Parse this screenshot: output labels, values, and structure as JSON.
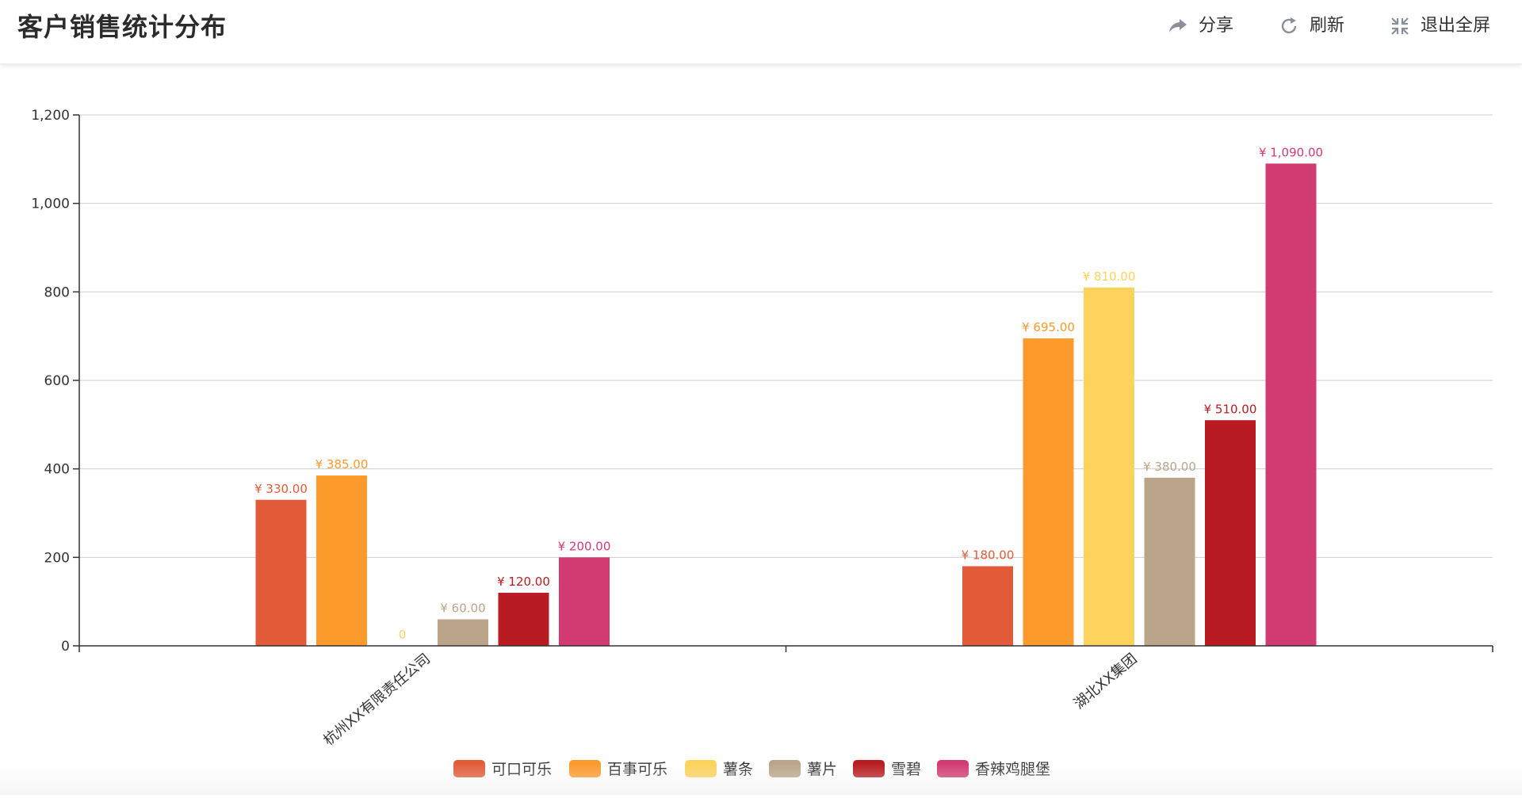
{
  "header": {
    "title": "客户销售统计分布",
    "share_label": "分享",
    "refresh_label": "刷新",
    "exit_fullscreen_label": "退出全屏",
    "share_icon": "share-arrow-icon",
    "refresh_icon": "refresh-icon",
    "exit_fullscreen_icon": "exit-fullscreen-icon"
  },
  "chart_data": {
    "type": "bar",
    "categories": [
      "杭州XX有限责任公司",
      "湖北XX集团"
    ],
    "series": [
      {
        "name": "可口可乐",
        "color": "#e25b38",
        "values": [
          330,
          180
        ],
        "labels": [
          "¥ 330.00",
          "¥ 180.00"
        ]
      },
      {
        "name": "百事可乐",
        "color": "#fd9a2c",
        "values": [
          385,
          695
        ],
        "labels": [
          "¥ 385.00",
          "¥ 695.00"
        ]
      },
      {
        "name": "薯条",
        "color": "#fdd35d",
        "values": [
          0,
          810
        ],
        "labels": [
          "0",
          "¥ 810.00"
        ]
      },
      {
        "name": "薯片",
        "color": "#bba58a",
        "values": [
          60,
          380
        ],
        "labels": [
          "¥ 60.00",
          "¥ 380.00"
        ]
      },
      {
        "name": "雪碧",
        "color": "#b81b21",
        "values": [
          120,
          510
        ],
        "labels": [
          "¥ 120.00",
          "¥ 510.00"
        ]
      },
      {
        "name": "香辣鸡腿堡",
        "color": "#d23b72",
        "values": [
          200,
          1090
        ],
        "labels": [
          "¥ 200.00",
          "¥ 1,090.00"
        ]
      }
    ],
    "yticks": [
      "0",
      "200",
      "400",
      "600",
      "800",
      "1,000",
      "1,200"
    ],
    "ylim": [
      0,
      1200
    ],
    "grid": true,
    "legend_position": "bottom-center",
    "xlabel_rotation": "rotated"
  }
}
